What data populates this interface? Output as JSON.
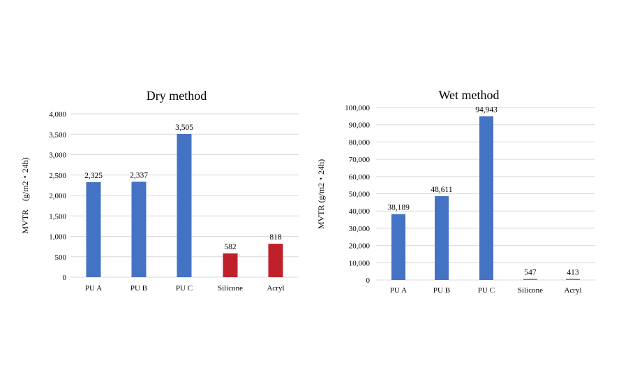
{
  "chart_data": [
    {
      "type": "bar",
      "title": "Dry method",
      "xlabel": "",
      "ylabel": "MVTR　(g/m2・24h)",
      "categories": [
        "PU A",
        "PU B",
        "PU C",
        "Silicone",
        "Acryl"
      ],
      "values": [
        2325,
        2337,
        3505,
        582,
        818
      ],
      "data_labels": [
        "2,325",
        "2,337",
        "3,505",
        "582",
        "818"
      ],
      "bar_colors": [
        "#4472c4",
        "#4472c4",
        "#4472c4",
        "#c0202a",
        "#c0202a"
      ],
      "ylim": [
        0,
        4000
      ],
      "yticks": [
        0,
        500,
        1000,
        1500,
        2000,
        2500,
        3000,
        3500,
        4000
      ],
      "ytick_labels": [
        "0",
        "500",
        "1,000",
        "1,500",
        "2,000",
        "2,500",
        "3,000",
        "3,500",
        "4,000"
      ],
      "grid": true,
      "legend": "none"
    },
    {
      "type": "bar",
      "title": "Wet method",
      "xlabel": "",
      "ylabel": "MVTR (g/m2・24h)",
      "categories": [
        "PU A",
        "PU B",
        "PU C",
        "Silicone",
        "Acryl"
      ],
      "values": [
        38189,
        48611,
        94943,
        547,
        413
      ],
      "data_labels": [
        "38,189",
        "48,611",
        "94,943",
        "547",
        "413"
      ],
      "bar_colors": [
        "#4472c4",
        "#4472c4",
        "#4472c4",
        "#e0503a",
        "#e0503a"
      ],
      "ylim": [
        0,
        100000
      ],
      "yticks": [
        0,
        10000,
        20000,
        30000,
        40000,
        50000,
        60000,
        70000,
        80000,
        90000,
        100000
      ],
      "ytick_labels": [
        "0",
        "10,000",
        "20,000",
        "30,000",
        "40,000",
        "50,000",
        "60,000",
        "70,000",
        "80,000",
        "90,000",
        "100,000"
      ],
      "grid": true,
      "legend": "none"
    }
  ]
}
